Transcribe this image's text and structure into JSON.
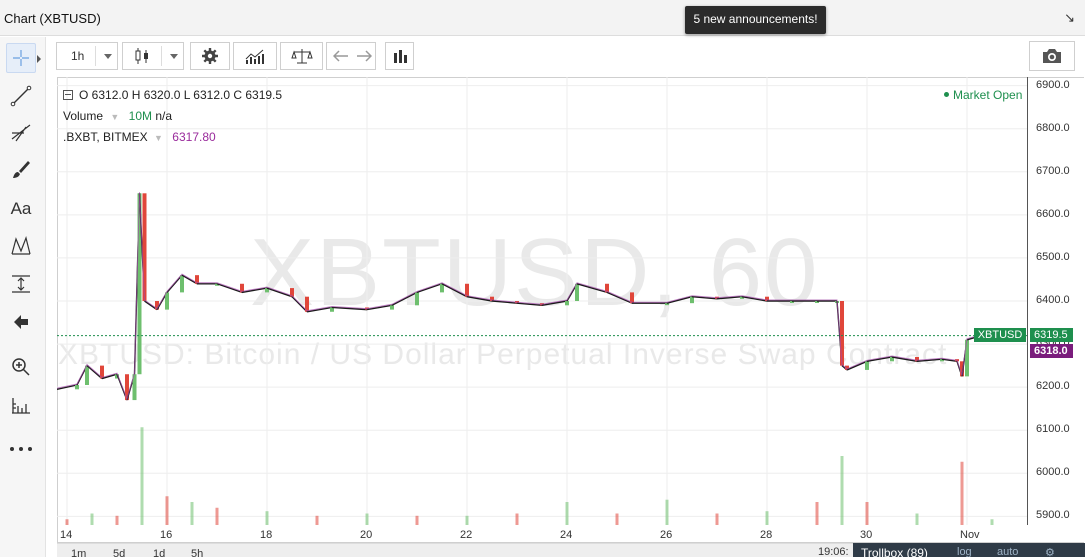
{
  "window": {
    "title": "Chart (XBTUSD)",
    "collapse_icon": "collapse-arrows-icon"
  },
  "announcement": {
    "text": "5 new announcements!"
  },
  "toolbar": {
    "interval": "1h",
    "buttons": [
      "candlestick-icon",
      "gear-icon",
      "indicators-icon",
      "compare-scale-icon",
      "undo-icon",
      "redo-icon",
      "bar-chart-icon",
      "camera-icon"
    ]
  },
  "left_tools": {
    "items": [
      "crosshair-icon",
      "trendline-icon",
      "fib-icon",
      "brush-icon",
      "text-tool-icon",
      "pattern-icon",
      "measure-icon",
      "back-arrow-icon",
      "zoom-icon",
      "ruler-icon",
      "more-icon"
    ],
    "text_tool_label": "Aa"
  },
  "legend": {
    "ohlc": "O 6312.0 H 6320.0 L 6312.0 C 6319.5",
    "volume_label": "Volume",
    "volume_ma": "10M",
    "volume_value": "n/a",
    "index_label": ".BXBT, BITMEX",
    "index_value": "6317.80"
  },
  "status": {
    "market": "Market Open"
  },
  "watermark": {
    "symbol": "XBTUSD, 60",
    "description": "XBTUSD: Bitcoin / US Dollar Perpetual Inverse Swap Contract"
  },
  "price_labels": {
    "symbol": "XBTUSD",
    "last": "6319.5",
    "index": "6318.0"
  },
  "colors": {
    "up": "#6ebf6e",
    "down": "#e0463a",
    "index_line": "#a24aa8",
    "market_open": "#1e8f4e"
  },
  "ranges": [
    "1m",
    "5d",
    "1d",
    "5h"
  ],
  "clock": "19:06:",
  "trollbox": {
    "label": "Trollbox (89)",
    "opt1": "log",
    "opt2": "auto"
  },
  "chart_data": {
    "type": "line",
    "title": "",
    "xlabel": "",
    "ylabel": "",
    "ylim": [
      5880,
      6920
    ],
    "y_ticks": [
      "6900.0",
      "6800.0",
      "6700.0",
      "6600.0",
      "6500.0",
      "6400.0",
      "6300.0",
      "6200.0",
      "6100.0",
      "6000.0",
      "5900.0"
    ],
    "x_ticks": [
      "14",
      "16",
      "18",
      "20",
      "22",
      "24",
      "26",
      "28",
      "30",
      "Nov"
    ],
    "x_tick_days": [
      14,
      16,
      18,
      20,
      22,
      24,
      26,
      28,
      30,
      32
    ],
    "xlim_days": [
      13.8,
      33.2
    ],
    "price_series": [
      [
        13.8,
        6195
      ],
      [
        14.2,
        6205
      ],
      [
        14.4,
        6250
      ],
      [
        14.7,
        6220
      ],
      [
        15.0,
        6230
      ],
      [
        15.2,
        6170
      ],
      [
        15.35,
        6230
      ],
      [
        15.45,
        6650
      ],
      [
        15.55,
        6400
      ],
      [
        15.8,
        6380
      ],
      [
        16.0,
        6420
      ],
      [
        16.3,
        6460
      ],
      [
        16.6,
        6440
      ],
      [
        17.0,
        6440
      ],
      [
        17.5,
        6420
      ],
      [
        18.0,
        6430
      ],
      [
        18.5,
        6410
      ],
      [
        18.8,
        6375
      ],
      [
        19.3,
        6385
      ],
      [
        20.0,
        6380
      ],
      [
        20.5,
        6390
      ],
      [
        21.0,
        6420
      ],
      [
        21.5,
        6440
      ],
      [
        22.0,
        6410
      ],
      [
        22.5,
        6400
      ],
      [
        23.0,
        6395
      ],
      [
        23.5,
        6390
      ],
      [
        24.0,
        6400
      ],
      [
        24.2,
        6440
      ],
      [
        24.8,
        6420
      ],
      [
        25.3,
        6395
      ],
      [
        26.0,
        6395
      ],
      [
        26.5,
        6410
      ],
      [
        27.0,
        6405
      ],
      [
        27.5,
        6410
      ],
      [
        28.0,
        6400
      ],
      [
        28.5,
        6400
      ],
      [
        29.0,
        6400
      ],
      [
        29.4,
        6400
      ],
      [
        29.5,
        6250
      ],
      [
        29.6,
        6240
      ],
      [
        30.0,
        6260
      ],
      [
        30.5,
        6270
      ],
      [
        31.0,
        6260
      ],
      [
        31.5,
        6265
      ],
      [
        31.8,
        6260
      ],
      [
        31.9,
        6225
      ],
      [
        32.0,
        6310
      ],
      [
        32.3,
        6320
      ],
      [
        32.6,
        6319.5
      ]
    ],
    "volume_series": [
      [
        14.0,
        5
      ],
      [
        14.5,
        10
      ],
      [
        15.0,
        8
      ],
      [
        15.5,
        85
      ],
      [
        16.0,
        25
      ],
      [
        16.5,
        20
      ],
      [
        17.0,
        15
      ],
      [
        18.0,
        12
      ],
      [
        19.0,
        8
      ],
      [
        20.0,
        10
      ],
      [
        21.0,
        8
      ],
      [
        22.0,
        8
      ],
      [
        23.0,
        10
      ],
      [
        24.0,
        20
      ],
      [
        25.0,
        10
      ],
      [
        26.0,
        22
      ],
      [
        27.0,
        10
      ],
      [
        28.0,
        12
      ],
      [
        29.0,
        20
      ],
      [
        29.5,
        60
      ],
      [
        30.0,
        20
      ],
      [
        31.0,
        10
      ],
      [
        31.9,
        55
      ],
      [
        32.5,
        5
      ]
    ],
    "reference_price": 6319.5
  }
}
